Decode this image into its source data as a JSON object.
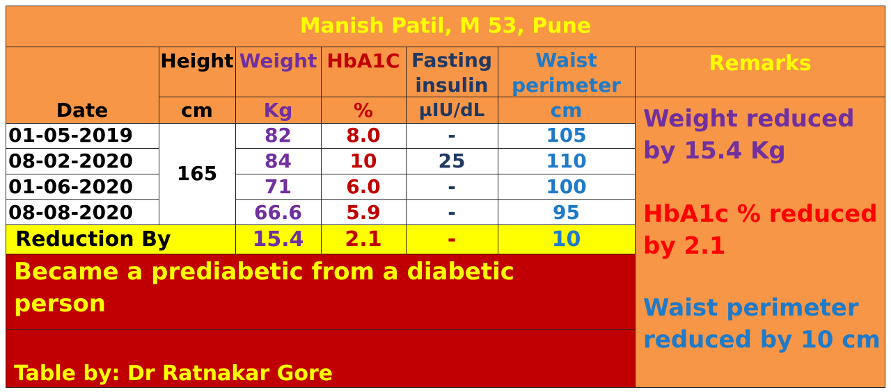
{
  "title": "Manish Patil, M 53, Pune",
  "headers": {
    "height": "Height",
    "weight": "Weight",
    "hba1c": "HbA1C",
    "fasting": "Fasting insulin",
    "waist": "Waist perimeter",
    "remarks": "Remarks",
    "date": "Date"
  },
  "units": {
    "height": "cm",
    "weight": "Kg",
    "hba1c": "%",
    "fasting": "µIU/dL",
    "waist": "cm"
  },
  "height_value": "165",
  "rows": [
    {
      "date": "01-05-2019",
      "weight": "82",
      "hba1c": "8.0",
      "fasting": "-",
      "waist": "105"
    },
    {
      "date": "08-02-2020",
      "weight": "84",
      "hba1c": "10",
      "fasting": "25",
      "waist": "110"
    },
    {
      "date": "01-06-2020",
      "weight": "71",
      "hba1c": "6.0",
      "fasting": "-",
      "waist": "100"
    },
    {
      "date": "08-08-2020",
      "weight": "66.6",
      "hba1c": "5.9",
      "fasting": "-",
      "waist": "95"
    }
  ],
  "reduction": {
    "label": "Reduction By",
    "weight": "15.4",
    "hba1c": "2.1",
    "fasting": "-",
    "waist": "10"
  },
  "remarks": {
    "weight": "Weight reduced by 15.4 Kg",
    "hba1c": "HbA1c % reduced by 2.1",
    "waist": "Waist perimeter reduced by 10 cm"
  },
  "conclusion": "Became a prediabetic from a diabetic person",
  "credit": "Table by: Dr Ratnakar Gore",
  "colors": {
    "orange": "#f79646",
    "yellow": "#ffff00",
    "dark_red": "#c00000",
    "purple": "#7030a0",
    "blue": "#1f7ac8",
    "navy": "#1f3864"
  }
}
